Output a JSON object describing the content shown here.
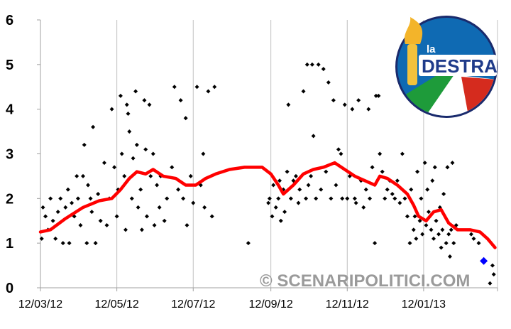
{
  "chart_data": {
    "type": "scatter",
    "title": "",
    "xlabel": "",
    "ylabel": "",
    "ylim": [
      0,
      6
    ],
    "yticks": [
      "0",
      "1",
      "2",
      "3",
      "4",
      "5",
      "6"
    ],
    "xlim": [
      "2012-03-12",
      "2013-03-12"
    ],
    "xticks": [
      {
        "date": "2012-03-12",
        "label": "12/03/12"
      },
      {
        "date": "2012-05-12",
        "label": "12/05/12"
      },
      {
        "date": "2012-07-12",
        "label": "12/07/12"
      },
      {
        "date": "2012-09-12",
        "label": "12/09/12"
      },
      {
        "date": "2012-11-12",
        "label": "12/11/12"
      },
      {
        "date": "2013-01-12",
        "label": "12/01/13"
      }
    ],
    "grid": {
      "vertical": true,
      "horizontal": false
    },
    "colors": {
      "polls": "#000000",
      "trend": "#ff0000",
      "result": "#0000ff",
      "grid": "#c0c0c0"
    },
    "series": [
      {
        "style": "points",
        "points": [
          [
            "2012-03-13",
            1.1
          ],
          [
            "2012-03-14",
            1.8
          ],
          [
            "2012-03-16",
            1.6
          ],
          [
            "2012-03-18",
            1.3
          ],
          [
            "2012-03-20",
            2.0
          ],
          [
            "2012-03-22",
            1.5
          ],
          [
            "2012-03-24",
            1.1
          ],
          [
            "2012-03-26",
            1.7
          ],
          [
            "2012-03-28",
            2.0
          ],
          [
            "2012-03-30",
            1.0
          ],
          [
            "2012-04-01",
            1.8
          ],
          [
            "2012-04-03",
            2.2
          ],
          [
            "2012-04-04",
            1.0
          ],
          [
            "2012-04-06",
            1.9
          ],
          [
            "2012-04-08",
            1.6
          ],
          [
            "2012-04-10",
            2.5
          ],
          [
            "2012-04-11",
            2.0
          ],
          [
            "2012-04-13",
            1.4
          ],
          [
            "2012-04-15",
            2.5
          ],
          [
            "2012-04-16",
            3.2
          ],
          [
            "2012-04-18",
            1.0
          ],
          [
            "2012-04-19",
            2.3
          ],
          [
            "2012-04-21",
            2.0
          ],
          [
            "2012-04-22",
            1.7
          ],
          [
            "2012-04-23",
            3.6
          ],
          [
            "2012-04-25",
            1.0
          ],
          [
            "2012-04-27",
            2.1
          ],
          [
            "2012-04-29",
            1.5
          ],
          [
            "2012-05-02",
            2.8
          ],
          [
            "2012-05-04",
            1.4
          ],
          [
            "2012-05-06",
            2.0
          ],
          [
            "2012-05-08",
            4.0
          ],
          [
            "2012-05-10",
            2.7
          ],
          [
            "2012-05-12",
            1.6
          ],
          [
            "2012-05-13",
            2.2
          ],
          [
            "2012-05-15",
            4.3
          ],
          [
            "2012-05-16",
            3.0
          ],
          [
            "2012-05-18",
            2.5
          ],
          [
            "2012-05-19",
            1.3
          ],
          [
            "2012-05-20",
            4.1
          ],
          [
            "2012-05-21",
            3.9
          ],
          [
            "2012-05-22",
            3.5
          ],
          [
            "2012-05-24",
            2.0
          ],
          [
            "2012-05-25",
            2.9
          ],
          [
            "2012-05-27",
            4.4
          ],
          [
            "2012-05-28",
            3.2
          ],
          [
            "2012-05-29",
            1.8
          ],
          [
            "2012-05-31",
            2.2
          ],
          [
            "2012-06-01",
            1.3
          ],
          [
            "2012-06-03",
            4.2
          ],
          [
            "2012-06-04",
            3.1
          ],
          [
            "2012-06-05",
            1.6
          ],
          [
            "2012-06-07",
            4.1
          ],
          [
            "2012-06-08",
            2.5
          ],
          [
            "2012-06-10",
            3.0
          ],
          [
            "2012-06-11",
            1.4
          ],
          [
            "2012-06-13",
            2.3
          ],
          [
            "2012-06-15",
            1.8
          ],
          [
            "2012-06-16",
            2.5
          ],
          [
            "2012-06-19",
            1.5
          ],
          [
            "2012-06-21",
            2.0
          ],
          [
            "2012-06-25",
            2.7
          ],
          [
            "2012-06-27",
            4.5
          ],
          [
            "2012-06-30",
            2.2
          ],
          [
            "2012-07-02",
            4.2
          ],
          [
            "2012-07-04",
            2.0
          ],
          [
            "2012-07-06",
            3.8
          ],
          [
            "2012-07-07",
            1.4
          ],
          [
            "2012-07-10",
            2.5
          ],
          [
            "2012-07-12",
            1.9
          ],
          [
            "2012-07-15",
            4.5
          ],
          [
            "2012-07-18",
            2.3
          ],
          [
            "2012-07-20",
            3.0
          ],
          [
            "2012-07-21",
            1.8
          ],
          [
            "2012-07-24",
            4.4
          ],
          [
            "2012-07-27",
            1.6
          ],
          [
            "2012-07-29",
            4.5
          ],
          [
            "2012-08-25",
            1.0
          ],
          [
            "2012-09-10",
            1.9
          ],
          [
            "2012-09-11",
            2.0
          ],
          [
            "2012-09-13",
            1.6
          ],
          [
            "2012-09-14",
            2.3
          ],
          [
            "2012-09-16",
            1.8
          ],
          [
            "2012-09-18",
            2.0
          ],
          [
            "2012-09-19",
            2.4
          ],
          [
            "2012-09-20",
            1.5
          ],
          [
            "2012-09-22",
            2.2
          ],
          [
            "2012-09-23",
            1.7
          ],
          [
            "2012-09-25",
            2.6
          ],
          [
            "2012-09-26",
            4.1
          ],
          [
            "2012-09-28",
            2.0
          ],
          [
            "2012-09-30",
            2.4
          ],
          [
            "2012-10-02",
            2.5
          ],
          [
            "2012-10-04",
            1.9
          ],
          [
            "2012-10-05",
            2.2
          ],
          [
            "2012-10-08",
            4.4
          ],
          [
            "2012-10-10",
            2.0
          ],
          [
            "2012-10-11",
            5.0
          ],
          [
            "2012-10-12",
            2.3
          ],
          [
            "2012-10-14",
            2.5
          ],
          [
            "2012-10-15",
            5.0
          ],
          [
            "2012-10-16",
            3.4
          ],
          [
            "2012-10-18",
            2.0
          ],
          [
            "2012-10-20",
            5.0
          ],
          [
            "2012-10-22",
            2.2
          ],
          [
            "2012-10-24",
            4.9
          ],
          [
            "2012-10-26",
            2.6
          ],
          [
            "2012-10-28",
            4.6
          ],
          [
            "2012-10-30",
            2.0
          ],
          [
            "2012-11-01",
            4.2
          ],
          [
            "2012-11-03",
            2.3
          ],
          [
            "2012-11-05",
            3.1
          ],
          [
            "2012-11-07",
            3.0
          ],
          [
            "2012-11-08",
            2.0
          ],
          [
            "2012-11-10",
            4.1
          ],
          [
            "2012-11-12",
            2.0
          ],
          [
            "2012-11-14",
            2.5
          ],
          [
            "2012-11-16",
            4.0
          ],
          [
            "2012-11-18",
            2.0
          ],
          [
            "2012-11-19",
            1.9
          ],
          [
            "2012-11-21",
            4.2
          ],
          [
            "2012-11-23",
            2.4
          ],
          [
            "2012-11-25",
            1.8
          ],
          [
            "2012-11-27",
            2.2
          ],
          [
            "2012-11-29",
            4.0
          ],
          [
            "2012-11-30",
            2.0
          ],
          [
            "2012-12-02",
            2.7
          ],
          [
            "2012-12-04",
            1.0
          ],
          [
            "2012-12-05",
            4.3
          ],
          [
            "2012-12-07",
            4.3
          ],
          [
            "2012-12-08",
            3.0
          ],
          [
            "2012-12-10",
            2.6
          ],
          [
            "2012-12-12",
            2.0
          ],
          [
            "2012-12-14",
            2.2
          ],
          [
            "2012-12-16",
            2.4
          ],
          [
            "2012-12-18",
            2.1
          ],
          [
            "2012-12-20",
            2.0
          ],
          [
            "2012-12-22",
            2.4
          ],
          [
            "2012-12-24",
            1.9
          ],
          [
            "2012-12-26",
            3.0
          ],
          [
            "2012-12-28",
            2.0
          ],
          [
            "2012-12-30",
            1.6
          ],
          [
            "2013-01-01",
            1.0
          ],
          [
            "2013-01-02",
            2.2
          ],
          [
            "2013-01-04",
            1.3
          ],
          [
            "2013-01-05",
            1.6
          ],
          [
            "2013-01-06",
            1.1
          ],
          [
            "2013-01-07",
            2.6
          ],
          [
            "2013-01-09",
            1.5
          ],
          [
            "2013-01-10",
            2.0
          ],
          [
            "2013-01-11",
            1.2
          ],
          [
            "2013-01-13",
            2.8
          ],
          [
            "2013-01-14",
            1.4
          ],
          [
            "2013-01-15",
            2.2
          ],
          [
            "2013-01-16",
            1.7
          ],
          [
            "2013-01-18",
            1.3
          ],
          [
            "2013-01-19",
            2.4
          ],
          [
            "2013-01-20",
            1.1
          ],
          [
            "2013-01-21",
            2.7
          ],
          [
            "2013-01-22",
            1.5
          ],
          [
            "2013-01-24",
            1.2
          ],
          [
            "2013-01-25",
            1.8
          ],
          [
            "2013-01-26",
            0.9
          ],
          [
            "2013-01-27",
            1.3
          ],
          [
            "2013-01-28",
            2.1
          ],
          [
            "2013-01-30",
            1.0
          ],
          [
            "2013-01-31",
            2.7
          ],
          [
            "2013-02-01",
            1.2
          ],
          [
            "2013-02-02",
            0.7
          ],
          [
            "2013-02-03",
            1.3
          ],
          [
            "2013-02-04",
            2.8
          ],
          [
            "2013-02-05",
            1.0
          ],
          [
            "2013-02-07",
            1.4
          ],
          [
            "2013-02-19",
            1.2
          ],
          [
            "2013-02-21",
            1.1
          ],
          [
            "2013-02-25",
            1.0
          ],
          [
            "2013-03-06",
            0.1
          ],
          [
            "2013-03-08",
            0.5
          ],
          [
            "2013-03-09",
            0.3
          ]
        ]
      },
      {
        "style": "line",
        "points": [
          [
            "2012-03-12",
            1.25
          ],
          [
            "2012-03-20",
            1.3
          ],
          [
            "2012-04-01",
            1.55
          ],
          [
            "2012-04-15",
            1.8
          ],
          [
            "2012-04-28",
            1.95
          ],
          [
            "2012-05-08",
            2.0
          ],
          [
            "2012-05-15",
            2.2
          ],
          [
            "2012-05-22",
            2.45
          ],
          [
            "2012-05-28",
            2.6
          ],
          [
            "2012-06-04",
            2.55
          ],
          [
            "2012-06-10",
            2.65
          ],
          [
            "2012-06-18",
            2.5
          ],
          [
            "2012-06-28",
            2.45
          ],
          [
            "2012-07-06",
            2.3
          ],
          [
            "2012-07-14",
            2.3
          ],
          [
            "2012-07-22",
            2.45
          ],
          [
            "2012-07-30",
            2.55
          ],
          [
            "2012-08-10",
            2.65
          ],
          [
            "2012-08-22",
            2.7
          ],
          [
            "2012-09-05",
            2.7
          ],
          [
            "2012-09-12",
            2.55
          ],
          [
            "2012-09-18",
            2.3
          ],
          [
            "2012-09-22",
            2.1
          ],
          [
            "2012-09-30",
            2.3
          ],
          [
            "2012-10-08",
            2.55
          ],
          [
            "2012-10-16",
            2.65
          ],
          [
            "2012-10-24",
            2.7
          ],
          [
            "2012-11-02",
            2.8
          ],
          [
            "2012-11-10",
            2.65
          ],
          [
            "2012-11-18",
            2.5
          ],
          [
            "2012-11-26",
            2.4
          ],
          [
            "2012-12-04",
            2.3
          ],
          [
            "2012-12-08",
            2.5
          ],
          [
            "2012-12-14",
            2.45
          ],
          [
            "2012-12-22",
            2.3
          ],
          [
            "2012-12-30",
            2.1
          ],
          [
            "2013-01-04",
            1.85
          ],
          [
            "2013-01-08",
            1.6
          ],
          [
            "2013-01-14",
            1.5
          ],
          [
            "2013-01-20",
            1.7
          ],
          [
            "2013-01-26",
            1.75
          ],
          [
            "2013-02-01",
            1.45
          ],
          [
            "2013-02-08",
            1.3
          ],
          [
            "2013-02-18",
            1.3
          ],
          [
            "2013-02-26",
            1.25
          ],
          [
            "2013-03-04",
            1.1
          ],
          [
            "2013-03-10",
            0.9
          ]
        ]
      },
      {
        "style": "marker",
        "points": [
          [
            "2013-03-01",
            0.6
          ]
        ]
      }
    ]
  },
  "watermark": "© SCENARIPOLITICI.COM",
  "logo": {
    "small_text": "la",
    "big_text": "DESTRA"
  }
}
